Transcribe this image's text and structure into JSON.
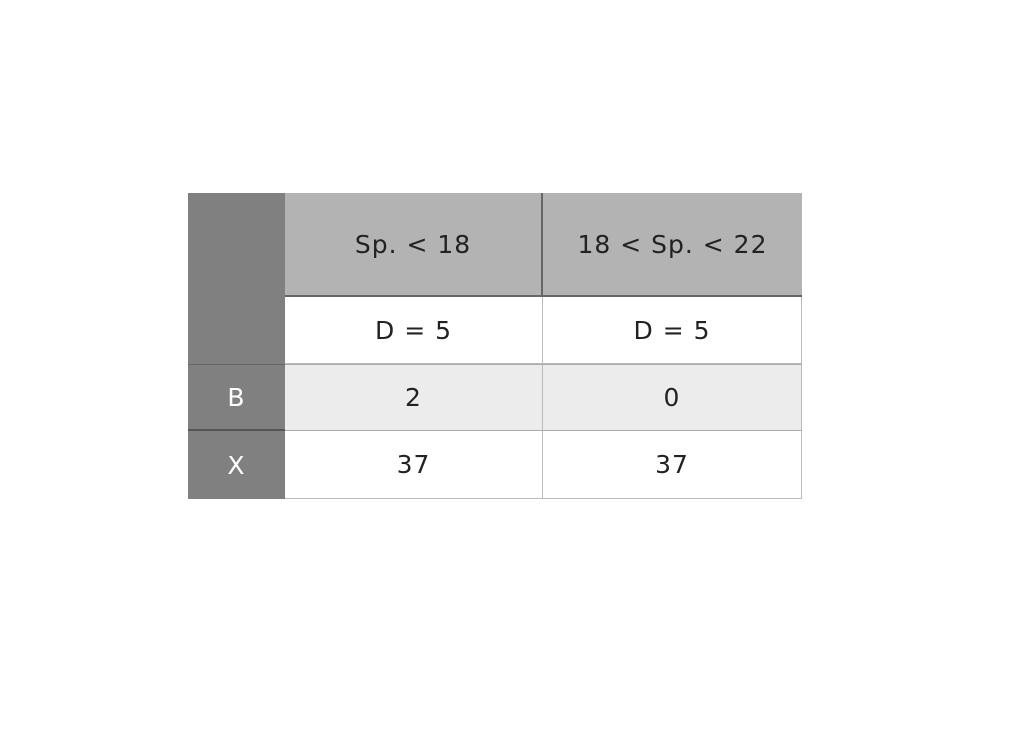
{
  "table": {
    "headers": [
      "",
      "Sp. < 18",
      "18 < Sp. < 22"
    ],
    "subheaders": [
      "D = 5",
      "D = 5"
    ],
    "rows": [
      {
        "label": "B",
        "values": [
          "2",
          "0"
        ]
      },
      {
        "label": "X",
        "values": [
          "37",
          "37"
        ]
      }
    ]
  },
  "colors": {
    "side": "#808080",
    "header": "#b3b3b3",
    "stripe": "#ececec"
  }
}
